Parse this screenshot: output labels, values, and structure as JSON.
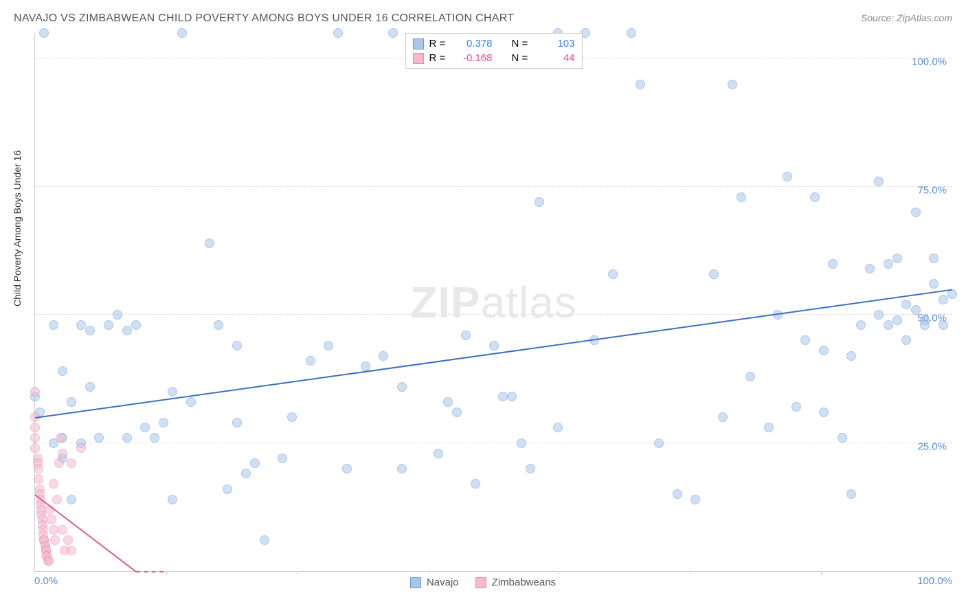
{
  "title": "NAVAJO VS ZIMBABWEAN CHILD POVERTY AMONG BOYS UNDER 16 CORRELATION CHART",
  "source": "Source: ZipAtlas.com",
  "y_axis_label": "Child Poverty Among Boys Under 16",
  "watermark_bold": "ZIP",
  "watermark_light": "atlas",
  "chart": {
    "type": "scatter",
    "xlim": [
      0,
      100
    ],
    "ylim": [
      0,
      105
    ],
    "x_ticks_shown": [
      0,
      100
    ],
    "x_tick_labels": [
      "0.0%",
      "100.0%"
    ],
    "x_minor_tick_positions": [
      14.3,
      28.6,
      42.9,
      57.1,
      71.4,
      85.7
    ],
    "y_ticks": [
      25,
      50,
      75,
      100
    ],
    "y_tick_labels": [
      "25.0%",
      "50.0%",
      "75.0%",
      "100.0%"
    ],
    "background_color": "#ffffff",
    "grid_color": "#dddddd",
    "axis_color": "#cccccc",
    "marker_radius": 7,
    "marker_opacity": 0.55,
    "series": [
      {
        "name": "Navajo",
        "color_fill": "#a8c5ec",
        "color_stroke": "#6b9bd1",
        "trend_color": "#3b6fc4",
        "R": "0.378",
        "N": "103",
        "trend": {
          "x1": 0,
          "y1": 30,
          "x2": 100,
          "y2": 55
        },
        "points": [
          [
            0,
            34
          ],
          [
            0.5,
            31
          ],
          [
            1,
            105
          ],
          [
            2,
            25
          ],
          [
            2,
            48
          ],
          [
            3,
            26
          ],
          [
            3,
            22
          ],
          [
            3,
            39
          ],
          [
            4,
            33
          ],
          [
            4,
            14
          ],
          [
            5,
            25
          ],
          [
            5,
            48
          ],
          [
            6,
            36
          ],
          [
            6,
            47
          ],
          [
            7,
            26
          ],
          [
            8,
            48
          ],
          [
            9,
            50
          ],
          [
            10,
            47
          ],
          [
            10,
            26
          ],
          [
            11,
            48
          ],
          [
            12,
            28
          ],
          [
            13,
            26
          ],
          [
            14,
            29
          ],
          [
            15,
            14
          ],
          [
            15,
            35
          ],
          [
            16,
            105
          ],
          [
            17,
            33
          ],
          [
            19,
            64
          ],
          [
            20,
            48
          ],
          [
            21,
            16
          ],
          [
            22,
            29
          ],
          [
            22,
            44
          ],
          [
            23,
            19
          ],
          [
            24,
            21
          ],
          [
            25,
            6
          ],
          [
            27,
            22
          ],
          [
            28,
            30
          ],
          [
            30,
            41
          ],
          [
            32,
            44
          ],
          [
            33,
            105
          ],
          [
            34,
            20
          ],
          [
            36,
            40
          ],
          [
            38,
            42
          ],
          [
            39,
            105
          ],
          [
            40,
            36
          ],
          [
            40,
            20
          ],
          [
            44,
            23
          ],
          [
            45,
            33
          ],
          [
            46,
            31
          ],
          [
            47,
            46
          ],
          [
            48,
            17
          ],
          [
            50,
            44
          ],
          [
            51,
            34
          ],
          [
            52,
            34
          ],
          [
            53,
            25
          ],
          [
            54,
            20
          ],
          [
            55,
            72
          ],
          [
            57,
            28
          ],
          [
            57,
            105
          ],
          [
            60,
            105
          ],
          [
            61,
            45
          ],
          [
            63,
            58
          ],
          [
            65,
            105
          ],
          [
            66,
            95
          ],
          [
            68,
            25
          ],
          [
            70,
            15
          ],
          [
            72,
            14
          ],
          [
            74,
            58
          ],
          [
            75,
            30
          ],
          [
            76,
            95
          ],
          [
            77,
            73
          ],
          [
            78,
            38
          ],
          [
            80,
            28
          ],
          [
            81,
            50
          ],
          [
            82,
            77
          ],
          [
            83,
            32
          ],
          [
            84,
            45
          ],
          [
            85,
            73
          ],
          [
            86,
            31
          ],
          [
            86,
            43
          ],
          [
            87,
            60
          ],
          [
            88,
            26
          ],
          [
            89,
            42
          ],
          [
            89,
            15
          ],
          [
            90,
            48
          ],
          [
            91,
            59
          ],
          [
            92,
            50
          ],
          [
            92,
            76
          ],
          [
            93,
            60
          ],
          [
            93,
            48
          ],
          [
            94,
            49
          ],
          [
            94,
            61
          ],
          [
            95,
            52
          ],
          [
            95,
            45
          ],
          [
            96,
            51
          ],
          [
            96,
            70
          ],
          [
            97,
            49
          ],
          [
            97,
            48
          ],
          [
            98,
            56
          ],
          [
            98,
            61
          ],
          [
            99,
            48
          ],
          [
            99,
            53
          ],
          [
            100,
            54
          ]
        ]
      },
      {
        "name": "Zimbabweans",
        "color_fill": "#f5b8ce",
        "color_stroke": "#e88aad",
        "trend_color": "#e05b8a",
        "R": "-0.168",
        "N": "44",
        "trend": {
          "x1": 0,
          "y1": 15,
          "x2": 11,
          "y2": 0
        },
        "trend_dash_ext": {
          "x1": 11,
          "y1": 0,
          "x2": 14,
          "y2": -4
        },
        "points": [
          [
            0,
            35
          ],
          [
            0,
            30
          ],
          [
            0,
            28
          ],
          [
            0,
            26
          ],
          [
            0,
            24
          ],
          [
            0.3,
            22
          ],
          [
            0.3,
            21
          ],
          [
            0.4,
            20
          ],
          [
            0.4,
            18
          ],
          [
            0.5,
            16
          ],
          [
            0.5,
            15
          ],
          [
            0.6,
            14
          ],
          [
            0.6,
            13
          ],
          [
            0.7,
            12
          ],
          [
            0.7,
            11
          ],
          [
            0.8,
            10
          ],
          [
            0.8,
            9
          ],
          [
            0.9,
            8
          ],
          [
            0.9,
            7
          ],
          [
            1,
            6
          ],
          [
            1,
            6
          ],
          [
            1.1,
            5
          ],
          [
            1.1,
            5
          ],
          [
            1.2,
            4
          ],
          [
            1.2,
            4
          ],
          [
            1.3,
            3
          ],
          [
            1.3,
            3
          ],
          [
            1.4,
            2
          ],
          [
            1.5,
            2
          ],
          [
            1.6,
            12
          ],
          [
            1.8,
            10
          ],
          [
            2,
            8
          ],
          [
            2,
            17
          ],
          [
            2.2,
            6
          ],
          [
            2.4,
            14
          ],
          [
            2.6,
            21
          ],
          [
            2.8,
            26
          ],
          [
            3,
            8
          ],
          [
            3.2,
            4
          ],
          [
            3.6,
            6
          ],
          [
            3,
            23
          ],
          [
            4,
            21
          ],
          [
            4,
            4
          ],
          [
            5,
            24
          ]
        ]
      }
    ]
  },
  "legend_labels": {
    "r_label": "R =",
    "n_label": "N ="
  }
}
